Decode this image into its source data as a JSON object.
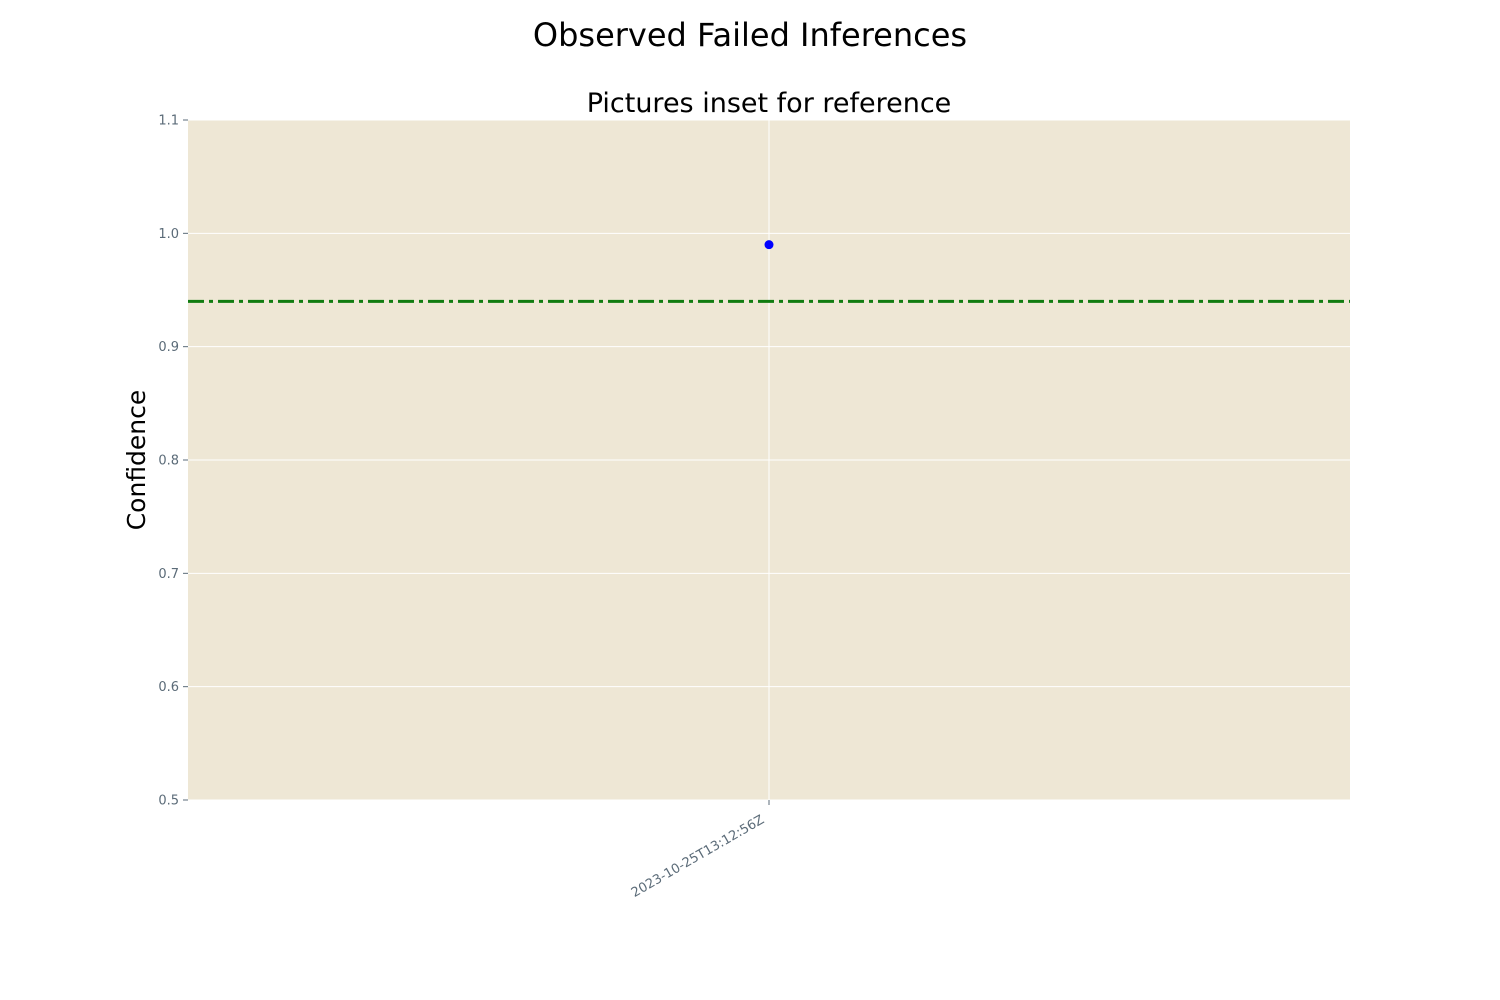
{
  "chart_data": {
    "type": "scatter",
    "suptitle": "Observed Failed Inferences",
    "title": "Pictures inset for reference",
    "xlabel": "",
    "ylabel": "Confidence",
    "ylim": [
      0.5,
      1.1
    ],
    "yticks": [
      "0.5",
      "0.6",
      "0.7",
      "0.8",
      "0.9",
      "1.0",
      "1.1"
    ],
    "categories": [
      "2023-10-25T13:12:56Z"
    ],
    "series": [
      {
        "values": [
          0.99
        ],
        "color": "#0000ff"
      }
    ],
    "reference_line": {
      "value": 0.94,
      "color": "#107c10",
      "style": "dash-dot"
    },
    "grid": true,
    "plot_background": "#eee7d5",
    "tick_color": "#5b6b78"
  }
}
